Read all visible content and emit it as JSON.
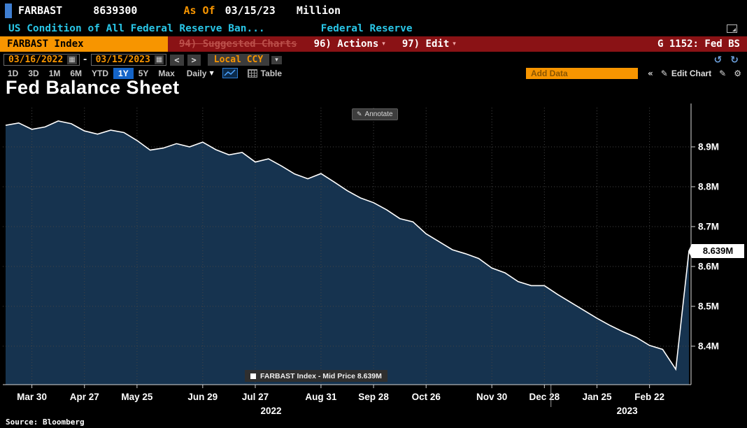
{
  "icons": {
    "chevron_down": "▾",
    "triangle_down": "▼",
    "calendar": "▦",
    "pencil": "✎",
    "gear": "⚙",
    "collapse": "«",
    "undo": "↺",
    "redo": "↻"
  },
  "header": {
    "ticker": "FARBAST",
    "ticker_value": "8639300",
    "as_of_label": "As Of",
    "as_of_date": "03/15/23",
    "units": "Million",
    "description": "US Condition of All Federal Reserve Ban...",
    "source": "Federal Reserve"
  },
  "menu_bar": {
    "security": "FARBAST Index",
    "suggested_charts": "94) Suggested Charts",
    "actions": "96) Actions",
    "edit": "97) Edit",
    "panel_id": "G 1152: Fed BS"
  },
  "range_bar": {
    "start_date": "03/16/2022",
    "separator": "-",
    "end_date": "03/15/2023",
    "prev": "<",
    "next": ">",
    "currency": "Local CCY"
  },
  "toolbar": {
    "periods": [
      "1D",
      "3D",
      "1M",
      "6M",
      "YTD",
      "1Y",
      "5Y",
      "Max"
    ],
    "selected_period": "1Y",
    "frequency": "Daily",
    "table": "Table",
    "add_data_placeholder": "Add Data",
    "edit_chart": "Edit Chart"
  },
  "chart": {
    "title": "Fed Balance Sheet",
    "annotate": "Annotate",
    "legend": "FARBAST Index - Mid Price 8.639M",
    "last_value": "8.639M"
  },
  "chart_data": {
    "type": "area",
    "title": "Fed Balance Sheet",
    "series_name": "FARBAST Index - Mid Price",
    "units": "Million",
    "line_color": "#ffffff",
    "fill_color": "#16334f",
    "grid": true,
    "ylim": [
      8.3,
      9.0
    ],
    "yticks": [
      8.4,
      8.5,
      8.6,
      8.7,
      8.8,
      8.9
    ],
    "ytick_labels": [
      "8.4M",
      "8.5M",
      "8.6M",
      "8.7M",
      "8.8M",
      "8.9M"
    ],
    "dates": [
      "03/16/22",
      "03/23/22",
      "03/30/22",
      "04/06/22",
      "04/13/22",
      "04/20/22",
      "04/27/22",
      "05/04/22",
      "05/11/22",
      "05/18/22",
      "05/25/22",
      "06/01/22",
      "06/08/22",
      "06/15/22",
      "06/22/22",
      "06/29/22",
      "07/06/22",
      "07/13/22",
      "07/20/22",
      "07/27/22",
      "08/03/22",
      "08/10/22",
      "08/17/22",
      "08/24/22",
      "08/31/22",
      "09/07/22",
      "09/14/22",
      "09/21/22",
      "09/28/22",
      "10/05/22",
      "10/12/22",
      "10/19/22",
      "10/26/22",
      "11/02/22",
      "11/09/22",
      "11/16/22",
      "11/23/22",
      "11/30/22",
      "12/07/22",
      "12/14/22",
      "12/21/22",
      "12/28/22",
      "01/04/23",
      "01/11/23",
      "01/18/23",
      "01/25/23",
      "02/01/23",
      "02/08/23",
      "02/15/23",
      "02/22/23",
      "03/01/23",
      "03/08/23",
      "03/15/23"
    ],
    "values": [
      8.954,
      8.96,
      8.944,
      8.95,
      8.965,
      8.958,
      8.94,
      8.932,
      8.942,
      8.936,
      8.916,
      8.892,
      8.897,
      8.908,
      8.9,
      8.912,
      8.893,
      8.88,
      8.886,
      8.862,
      8.87,
      8.852,
      8.832,
      8.82,
      8.833,
      8.812,
      8.79,
      8.772,
      8.76,
      8.742,
      8.72,
      8.712,
      8.682,
      8.662,
      8.642,
      8.632,
      8.62,
      8.596,
      8.584,
      8.562,
      8.552,
      8.552,
      8.53,
      8.51,
      8.49,
      8.47,
      8.452,
      8.436,
      8.422,
      8.402,
      8.392,
      8.342,
      8.639
    ],
    "xticks": [
      {
        "index": 2,
        "label": "Mar 30"
      },
      {
        "index": 6,
        "label": "Apr 27"
      },
      {
        "index": 10,
        "label": "May 25"
      },
      {
        "index": 15,
        "label": "Jun 29"
      },
      {
        "index": 19,
        "label": "Jul 27"
      },
      {
        "index": 24,
        "label": "Aug 31"
      },
      {
        "index": 28,
        "label": "Sep 28"
      },
      {
        "index": 32,
        "label": "Oct 26"
      },
      {
        "index": 37,
        "label": "Nov 30"
      },
      {
        "index": 41,
        "label": "Dec 28"
      },
      {
        "index": 45,
        "label": "Jan 25"
      },
      {
        "index": 49,
        "label": "Feb 22"
      }
    ],
    "year_labels": [
      {
        "index": 20.2,
        "label": "2022"
      },
      {
        "index": 47.3,
        "label": "2023"
      }
    ],
    "year_divider_index": 41.5,
    "last_value_label": "8.639M",
    "legend": "FARBAST Index - Mid Price 8.639M",
    "legend_position": "bottom-center"
  },
  "footer": {
    "source": "Source: Bloomberg"
  }
}
